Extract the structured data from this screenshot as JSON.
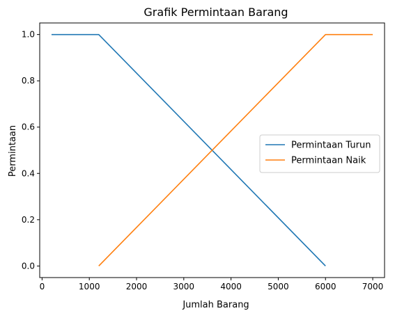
{
  "chart_data": {
    "type": "line",
    "title": "Grafik Permintaan Barang",
    "xlabel": "Jumlah Barang",
    "ylabel": "Permintaan",
    "xlim": [
      -50,
      7250
    ],
    "ylim": [
      -0.05,
      1.05
    ],
    "xticks": [
      0,
      1000,
      2000,
      3000,
      4000,
      5000,
      6000,
      7000
    ],
    "xtick_labels": [
      "0",
      "1000",
      "2000",
      "3000",
      "4000",
      "5000",
      "6000",
      "7000"
    ],
    "yticks": [
      0.0,
      0.2,
      0.4,
      0.6,
      0.8,
      1.0
    ],
    "ytick_labels": [
      "0.0",
      "0.2",
      "0.4",
      "0.6",
      "0.8",
      "1.0"
    ],
    "grid": false,
    "legend_position": "center-right",
    "series": [
      {
        "name": "Permintaan Turun",
        "color": "#1f77b4",
        "x": [
          200,
          1200,
          6000
        ],
        "y": [
          1.0,
          1.0,
          0.0
        ]
      },
      {
        "name": "Permintaan Naik",
        "color": "#ff7f0e",
        "x": [
          1200,
          6000,
          7000
        ],
        "y": [
          0.0,
          1.0,
          1.0
        ]
      }
    ]
  }
}
